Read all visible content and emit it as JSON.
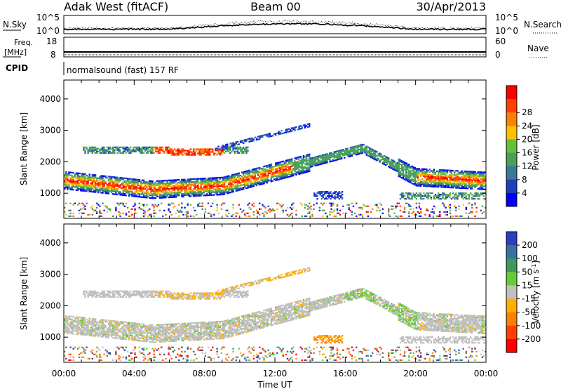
{
  "header": {
    "station": "Adak West (fitACF)",
    "beam": "Beam 00",
    "date": "30/Apr/2013"
  },
  "top_panels": {
    "nsky_label": "N.Sky",
    "nsky_ticks": [
      "10^5",
      "10^0"
    ],
    "nsearch_label": "N.Search",
    "nsearch_ticks": [
      "10^5",
      "10^0"
    ],
    "freq_label": "Freq.",
    "freq_unit": "[MHz]",
    "freq_ticks": [
      "18",
      "8"
    ],
    "nave_label": "Nave",
    "nave_ticks": [
      "60",
      "0"
    ],
    "cpid_label": "CPID",
    "cpid_text": "normalsound (fast) 157 RF"
  },
  "chart_data": [
    {
      "type": "heatmap",
      "name": "power",
      "ylabel": "Slant Range [km]",
      "xlabel": "",
      "y_ticks": [
        1000,
        2000,
        3000,
        4000
      ],
      "ylim": [
        200,
        4600
      ],
      "x_ticks": [
        "00:00",
        "04:00",
        "08:00",
        "12:00",
        "16:00",
        "20:00",
        "00:00"
      ],
      "xlim_hours": [
        0,
        24
      ],
      "colorbar": {
        "label": "Power [dB]",
        "ticks": [
          "4",
          "8",
          "12",
          "16",
          "20",
          "24",
          "28"
        ],
        "colors": [
          "#0000ff",
          "#1f3fbf",
          "#3a7a96",
          "#4aa05a",
          "#66c03a",
          "#ffc000",
          "#ff8000",
          "#ff4000",
          "#ff0000"
        ]
      },
      "features": [
        {
          "kind": "band",
          "desc_hours": [
            0,
            24
          ],
          "range_km_start": 1400,
          "range_km_mid": 1100,
          "max_power_db": 28
        },
        {
          "kind": "band",
          "desc_hours": [
            2,
            10
          ],
          "range_km": 2300,
          "max_power_db": 28
        },
        {
          "kind": "band",
          "desc_hours": [
            9,
            14
          ],
          "range_km": 3000,
          "max_power_db": 8
        }
      ]
    },
    {
      "type": "heatmap",
      "name": "velocity",
      "ylabel": "Slant Range [km]",
      "xlabel": "Time UT",
      "y_ticks": [
        1000,
        2000,
        3000,
        4000
      ],
      "ylim": [
        200,
        4600
      ],
      "x_ticks": [
        "00:00",
        "04:00",
        "08:00",
        "12:00",
        "16:00",
        "20:00",
        "00:00"
      ],
      "xlim_hours": [
        0,
        24
      ],
      "colorbar": {
        "label": "Velocity [m s^-1]",
        "ticks": [
          "200",
          "100",
          "50",
          "15",
          "-15",
          "-50",
          "-100",
          "-200"
        ],
        "colors": [
          "#2a3fbf",
          "#3a6fa0",
          "#3a9a5a",
          "#66cc33",
          "#c0c0c0",
          "#ffb000",
          "#ff8000",
          "#ff4000",
          "#ff0000"
        ]
      }
    }
  ]
}
